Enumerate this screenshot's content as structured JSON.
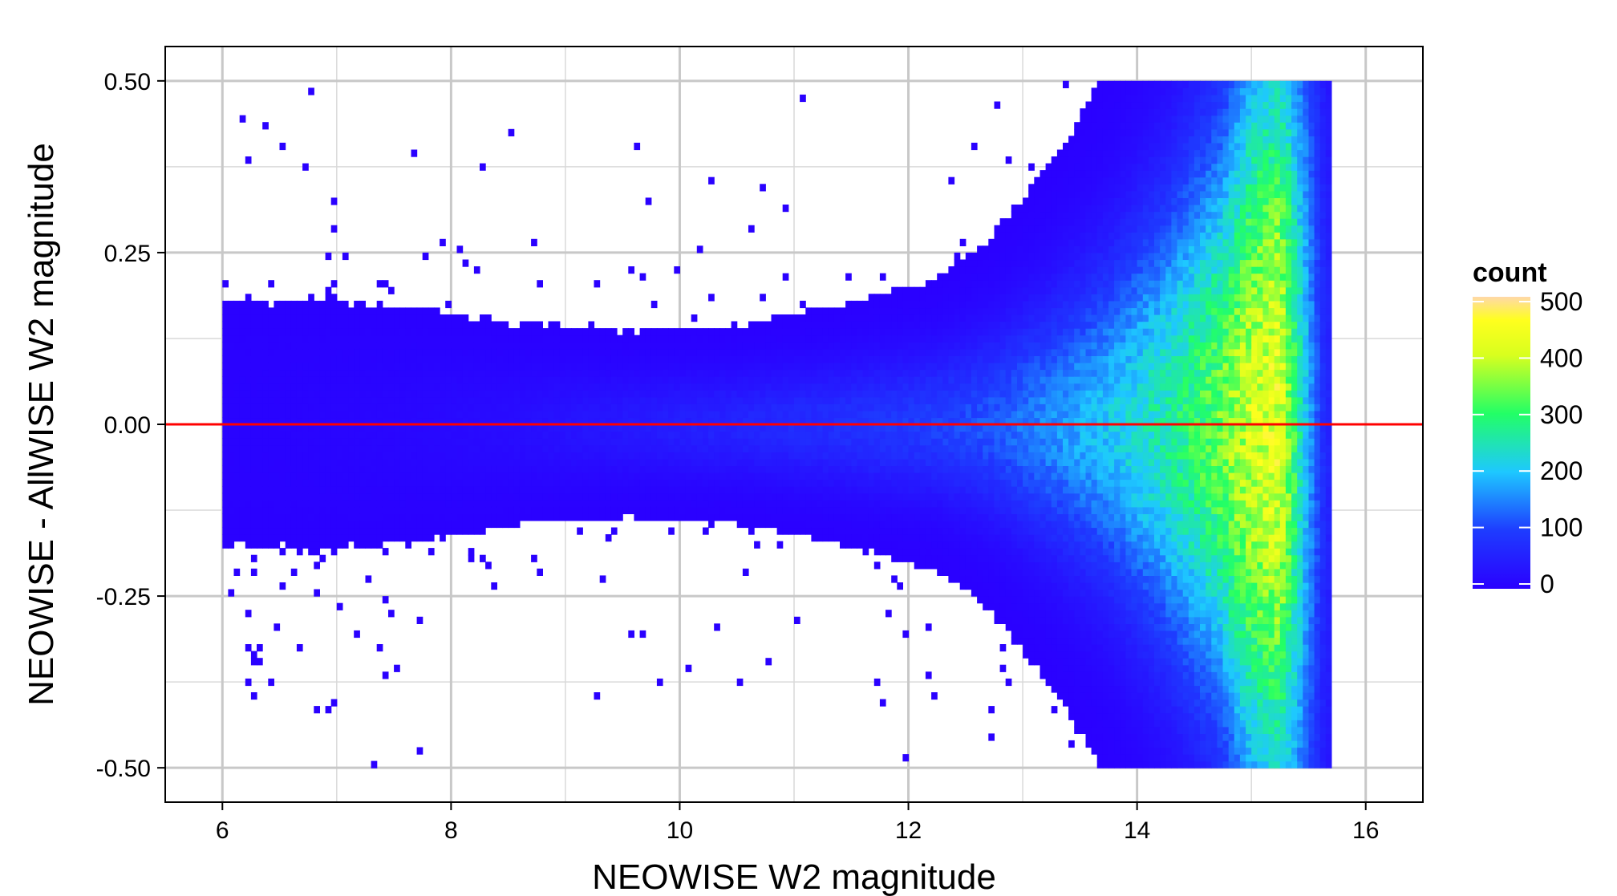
{
  "chart_data": {
    "type": "heatmap",
    "title": "",
    "xlabel": "NEOWISE W2 magnitude",
    "ylabel": "NEOWISE - AllWISE W2 magnitude",
    "xlim": [
      5.5,
      16.5
    ],
    "ylim": [
      -0.55,
      0.55
    ],
    "x_ticks": [
      6,
      8,
      10,
      12,
      14,
      16
    ],
    "x_tick_labels": [
      "6",
      "8",
      "10",
      "12",
      "14",
      "16"
    ],
    "y_ticks": [
      -0.5,
      -0.25,
      0.0,
      0.25,
      0.5
    ],
    "y_tick_labels": [
      "-0.50",
      "-0.25",
      "0.00",
      "0.25",
      "0.50"
    ],
    "grid": true,
    "reference_line": {
      "y": 0.0,
      "color": "#ff0000"
    },
    "data_extent": {
      "x": [
        6.0,
        15.7
      ],
      "y": [
        -0.5,
        0.5
      ]
    },
    "density_profile": {
      "x_centers": [
        6.5,
        7.5,
        8.5,
        9.5,
        10.5,
        11.5,
        12.25,
        12.75,
        13.25,
        13.75,
        14.25,
        14.75,
        15.0,
        15.25,
        15.5,
        15.65
      ],
      "peak_count": [
        5,
        10,
        20,
        40,
        60,
        80,
        100,
        120,
        160,
        200,
        260,
        340,
        400,
        420,
        180,
        60
      ],
      "core_half_width": [
        0.1,
        0.08,
        0.06,
        0.05,
        0.05,
        0.06,
        0.07,
        0.09,
        0.12,
        0.16,
        0.22,
        0.3,
        0.4,
        0.45,
        0.5,
        0.5
      ]
    },
    "legend": {
      "title": "count",
      "position": "right",
      "type": "colorbar",
      "range": [
        0,
        500
      ],
      "ticks": [
        0,
        100,
        200,
        300,
        400,
        500
      ],
      "tick_labels": [
        "0",
        "100",
        "200",
        "300",
        "400",
        "500"
      ],
      "colors": [
        "#2a00ff",
        "#1e3cff",
        "#1ec8ff",
        "#22ff66",
        "#d8ff1e",
        "#ffff1e",
        "#ffd8a8"
      ]
    }
  }
}
